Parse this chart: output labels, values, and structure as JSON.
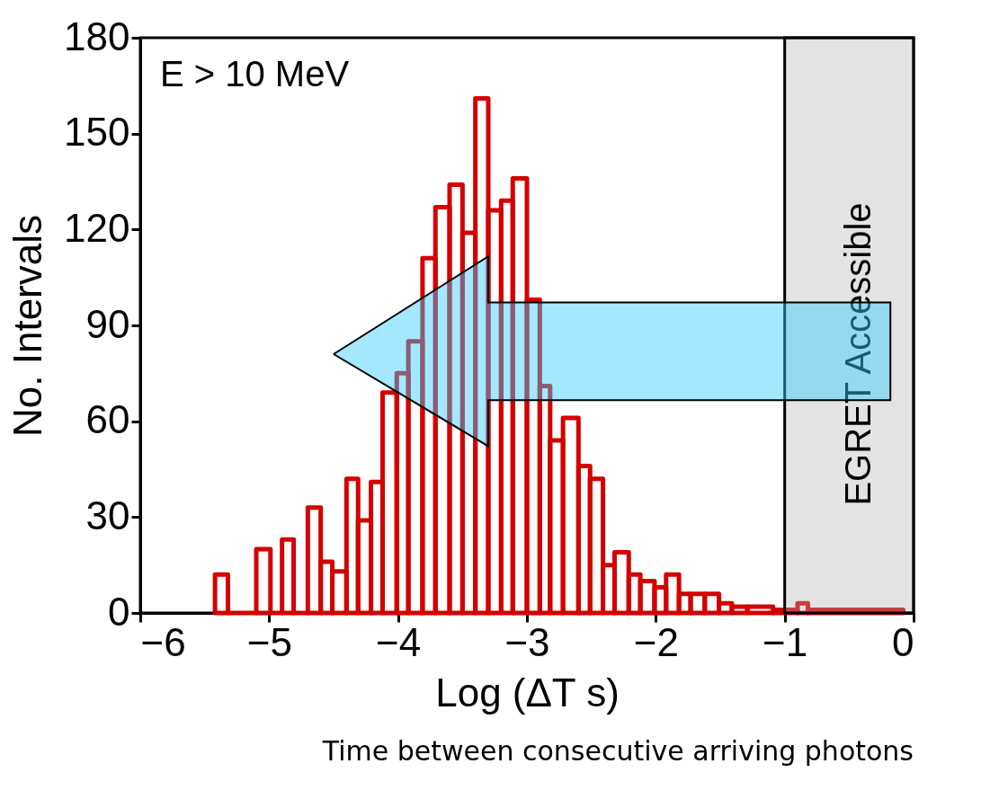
{
  "chart_data": {
    "type": "histogram",
    "xlabel": "Log  (ΔT s)",
    "ylabel": "No. Intervals",
    "color": "#d40000",
    "bins": [
      -5.42,
      -5.32,
      -5.1,
      -4.99,
      -4.9,
      -4.81,
      -4.7,
      -4.6,
      -4.51,
      -4.4,
      -4.31,
      -4.21,
      -4.12,
      -4.01,
      -3.92,
      -3.81,
      -3.71,
      -3.6,
      -3.5,
      -3.4,
      -3.3,
      -3.2,
      -3.11,
      -3.0,
      -2.9,
      -2.82,
      -2.72,
      -2.6,
      -2.51,
      -2.41,
      -2.32,
      -2.21,
      -2.12,
      -2.01,
      -1.92,
      -1.82,
      -1.73,
      -1.62,
      -1.51,
      -1.41,
      -1.29,
      -1.09,
      -0.9,
      -0.82,
      -0.08
    ],
    "values": [
      12,
      0,
      20,
      0,
      23,
      0,
      33,
      16,
      13,
      42,
      29,
      41,
      69,
      75,
      85,
      111,
      127,
      134,
      119,
      161,
      126,
      129,
      136,
      98,
      71,
      54,
      61,
      46,
      42,
      15,
      19,
      12,
      10,
      8,
      12,
      6,
      6,
      6,
      3,
      2,
      2,
      1,
      3,
      1
    ],
    "xlim": [
      -6,
      0
    ],
    "xticks": [
      -6,
      -5,
      -4,
      -3,
      -2,
      -1,
      0
    ],
    "ylim": [
      0,
      180
    ],
    "yticks": [
      0,
      30,
      60,
      90,
      120,
      150,
      180
    ],
    "grid": false,
    "bands": [
      {
        "axis": "x",
        "from": -1,
        "to": 0,
        "color": "#b0b0b0",
        "label": "EGRET Accessible"
      }
    ],
    "annotations": [
      "E > 10 MeV",
      "Time between consecutive arriving photons"
    ]
  }
}
